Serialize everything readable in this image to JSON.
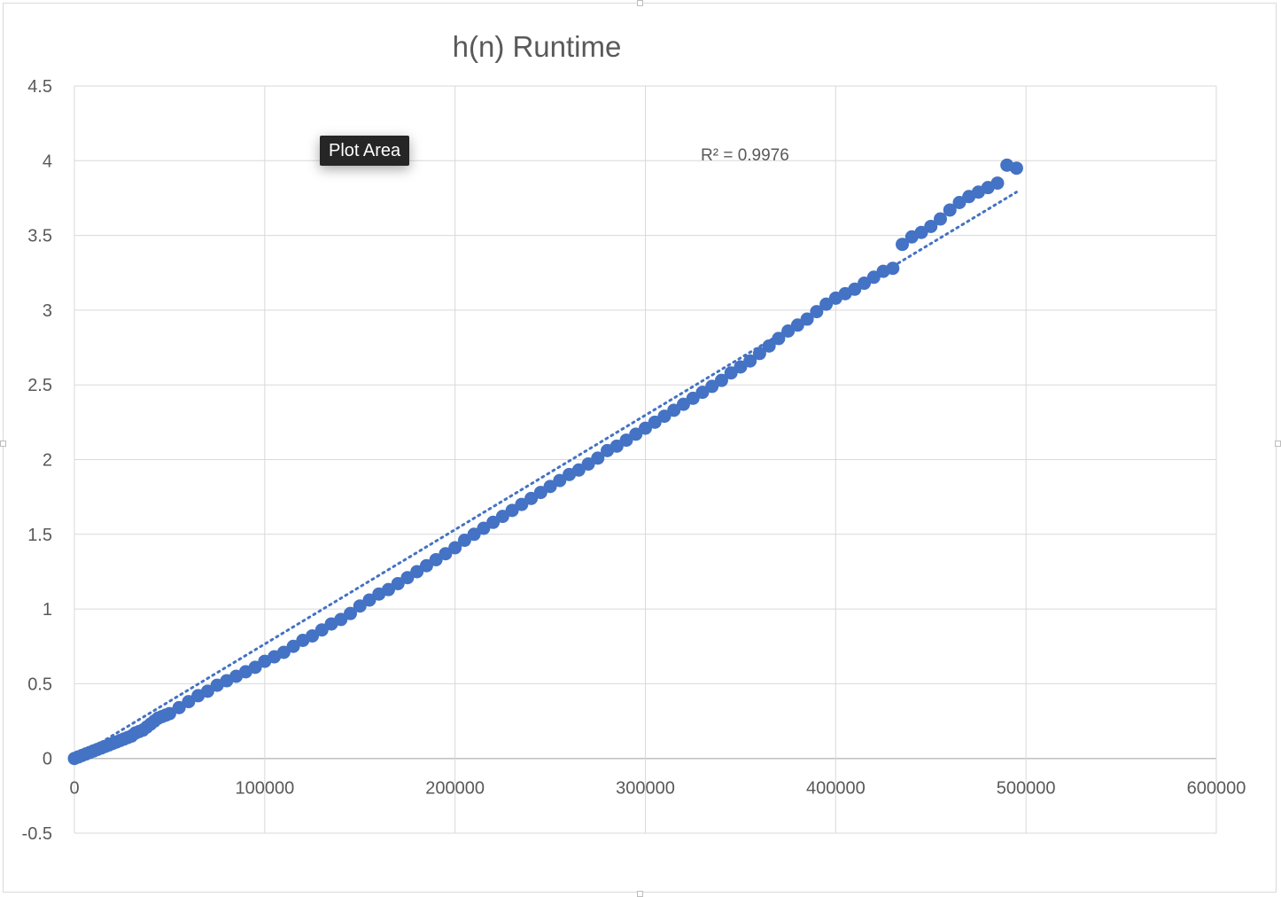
{
  "chart_data": {
    "type": "scatter",
    "title": "h(n) Runtime",
    "xlabel": "",
    "ylabel": "",
    "xlim": [
      0,
      600000
    ],
    "ylim": [
      -0.5,
      4.5
    ],
    "x_ticks": [
      "0",
      "100000",
      "200000",
      "300000",
      "400000",
      "500000",
      "600000"
    ],
    "y_ticks": [
      "4.5",
      "4",
      "3.5",
      "3",
      "2.5",
      "2",
      "1.5",
      "1",
      "0.5",
      "0",
      "-0.5"
    ],
    "grid": true,
    "marker_color": "#4472c4",
    "trendline": {
      "type": "linear",
      "style": "dotted",
      "r_squared_label": "R² = 0.9976",
      "start": [
        0,
        0
      ],
      "end": [
        495000,
        3.79
      ]
    },
    "series": [
      {
        "x": [
          0,
          2000,
          4000,
          6000,
          8000,
          10000,
          12000,
          14000,
          16000,
          18000,
          20000,
          22000,
          24000,
          26000,
          28000,
          30000,
          32000,
          34000,
          36000,
          38000,
          40000,
          42000,
          44000,
          46000,
          48000,
          50000,
          55000,
          60000,
          65000,
          70000,
          75000,
          80000,
          85000,
          90000,
          95000,
          100000,
          105000,
          110000,
          115000,
          120000,
          125000,
          130000,
          135000,
          140000,
          145000,
          150000,
          155000,
          160000,
          165000,
          170000,
          175000,
          180000,
          185000,
          190000,
          195000,
          200000,
          205000,
          210000,
          215000,
          220000,
          225000,
          230000,
          235000,
          240000,
          245000,
          250000,
          255000,
          260000,
          265000,
          270000,
          275000,
          280000,
          285000,
          290000,
          295000,
          300000,
          305000,
          310000,
          315000,
          320000,
          325000,
          330000,
          335000,
          340000,
          345000,
          350000,
          355000,
          360000,
          365000,
          370000,
          375000,
          380000,
          385000,
          390000,
          395000,
          400000,
          405000,
          410000,
          415000,
          420000,
          425000,
          430000,
          435000,
          440000,
          445000,
          450000,
          455000,
          460000,
          465000,
          470000,
          475000,
          480000,
          485000,
          490000,
          495000
        ],
        "y": [
          0,
          0.01,
          0.02,
          0.03,
          0.04,
          0.05,
          0.06,
          0.07,
          0.08,
          0.09,
          0.1,
          0.11,
          0.12,
          0.13,
          0.14,
          0.15,
          0.17,
          0.18,
          0.19,
          0.21,
          0.23,
          0.25,
          0.27,
          0.28,
          0.29,
          0.3,
          0.34,
          0.38,
          0.42,
          0.45,
          0.49,
          0.52,
          0.55,
          0.58,
          0.61,
          0.65,
          0.68,
          0.71,
          0.75,
          0.79,
          0.82,
          0.86,
          0.9,
          0.93,
          0.97,
          1.02,
          1.06,
          1.1,
          1.13,
          1.17,
          1.21,
          1.25,
          1.29,
          1.33,
          1.37,
          1.41,
          1.46,
          1.5,
          1.54,
          1.58,
          1.62,
          1.66,
          1.7,
          1.74,
          1.78,
          1.82,
          1.86,
          1.9,
          1.93,
          1.97,
          2.01,
          2.06,
          2.09,
          2.13,
          2.17,
          2.21,
          2.25,
          2.29,
          2.33,
          2.37,
          2.41,
          2.45,
          2.49,
          2.53,
          2.58,
          2.62,
          2.66,
          2.71,
          2.76,
          2.81,
          2.86,
          2.9,
          2.94,
          2.99,
          3.04,
          3.08,
          3.11,
          3.14,
          3.18,
          3.22,
          3.26,
          3.28,
          3.44,
          3.49,
          3.52,
          3.56,
          3.61,
          3.67,
          3.72,
          3.76,
          3.79,
          3.82,
          3.85,
          3.97,
          3.95
        ]
      }
    ]
  },
  "ui": {
    "tooltip_text": "Plot Area"
  }
}
